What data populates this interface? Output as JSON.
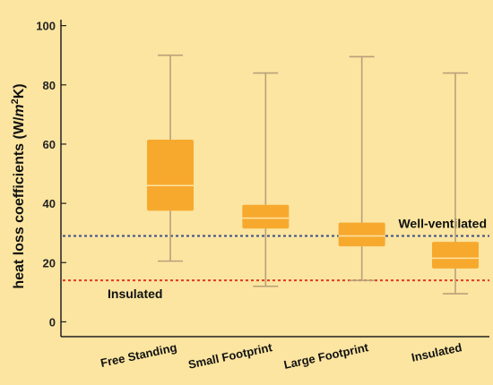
{
  "chart_data": {
    "type": "box",
    "categories": [
      "Free Standing",
      "Small Footprint",
      "Large Footprint",
      "Insulated"
    ],
    "boxes": [
      {
        "whisker_low": 20.5,
        "q1": 37.5,
        "median": 46.0,
        "q3": 61.5,
        "whisker_high": 90.0
      },
      {
        "whisker_low": 12.0,
        "q1": 31.5,
        "median": 35.0,
        "q3": 39.5,
        "whisker_high": 84.0
      },
      {
        "whisker_low": 14.0,
        "q1": 25.5,
        "median": 29.0,
        "q3": 33.5,
        "whisker_high": 89.5
      },
      {
        "whisker_low": 9.5,
        "q1": 18.0,
        "median": 21.5,
        "q3": 27.0,
        "whisker_high": 84.0
      }
    ],
    "ylabel_main": "heat loss coefficients (W/",
    "ylabel_unit": "m",
    "ylabel_exp": "2",
    "ylabel_end": "K)",
    "ylim": [
      -5,
      102
    ],
    "yticks": [
      0,
      20,
      40,
      60,
      80,
      100
    ],
    "grid": false,
    "reference_lines": [
      {
        "label": "Well-ventilated",
        "value": 29,
        "color": "#3a4d8c"
      },
      {
        "label": "Insulated",
        "value": 14,
        "color": "#e03a1e"
      }
    ],
    "colors": {
      "box_fill": "#f7a92e",
      "median": "#fde3a3",
      "whisker": "#b9a07a",
      "axis": "#222222"
    }
  }
}
